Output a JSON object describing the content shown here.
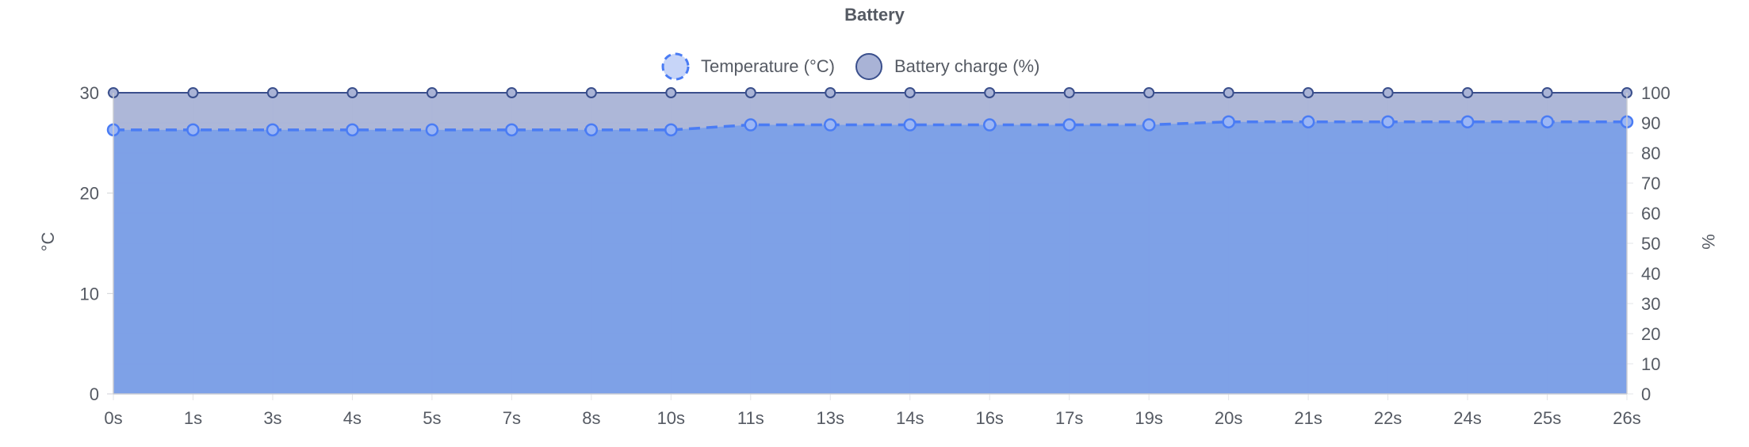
{
  "chart_data": {
    "type": "area",
    "title": "Battery",
    "x": [
      "0s",
      "1s",
      "3s",
      "4s",
      "5s",
      "7s",
      "8s",
      "10s",
      "11s",
      "13s",
      "14s",
      "16s",
      "17s",
      "19s",
      "20s",
      "21s",
      "22s",
      "24s",
      "25s",
      "26s"
    ],
    "series": [
      {
        "name": "Temperature (°C)",
        "axis": "left",
        "style": "dashed-line-with-fill",
        "values": [
          26.3,
          26.3,
          26.3,
          26.3,
          26.3,
          26.3,
          26.3,
          26.3,
          26.8,
          26.8,
          26.8,
          26.8,
          26.8,
          26.8,
          27.1,
          27.1,
          27.1,
          27.1,
          27.1,
          27.1
        ]
      },
      {
        "name": "Battery charge (%)",
        "axis": "right",
        "style": "line-with-fill",
        "values": [
          100,
          100,
          100,
          100,
          100,
          100,
          100,
          100,
          100,
          100,
          100,
          100,
          100,
          100,
          100,
          100,
          100,
          100,
          100,
          100
        ]
      }
    ],
    "ylabel": "°C",
    "ylabel_right": "%",
    "ylim": [
      0,
      30
    ],
    "ylim_right": [
      0,
      100
    ],
    "yticks": [
      "0",
      "10",
      "20",
      "30"
    ],
    "yticks_right": [
      "0",
      "10",
      "20",
      "30",
      "40",
      "50",
      "60",
      "70",
      "80",
      "90",
      "100"
    ],
    "grid": true,
    "legend": "top-center"
  },
  "colors": {
    "temperature_line": "#4a7cf4",
    "temperature_fill": "#7b9fe8",
    "battery_line": "#3a4f8c",
    "battery_fill": "#a9b3d6",
    "text": "#555a63"
  }
}
